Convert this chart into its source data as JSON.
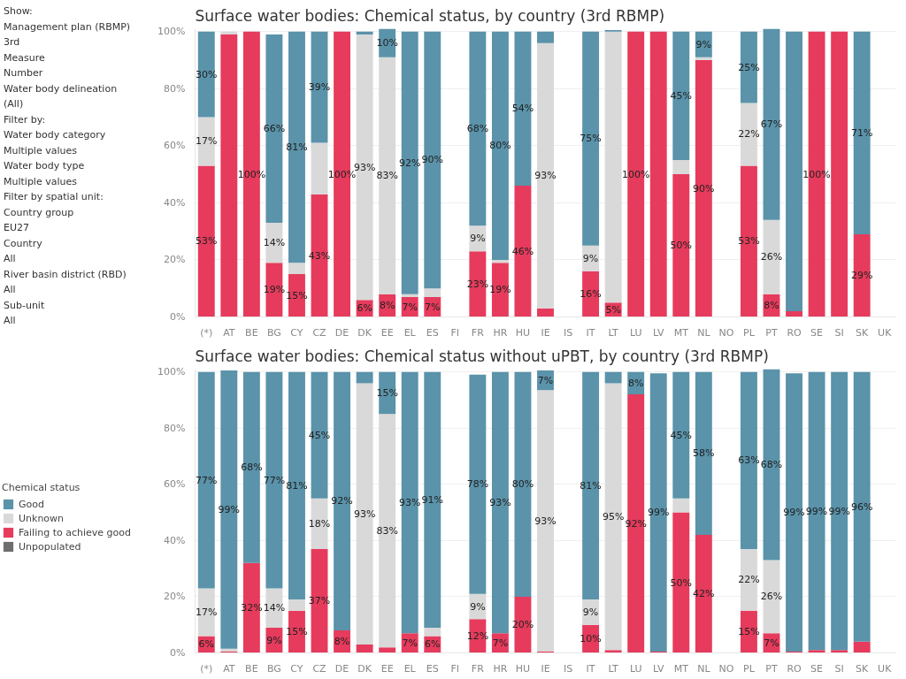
{
  "chart_data": [
    {
      "type": "bar",
      "stacked": true,
      "title": "Surface water bodies: Chemical status, by country (3rd RBMP)",
      "annotations": [
        "Show:",
        "Management plan (RBMP)",
        "3rd",
        "Measure",
        "Number",
        "Water body delineation",
        "(All)",
        "Filter by:",
        "Water body category",
        "Multiple values",
        "Water body type",
        "Multiple values",
        "Filter by spatial unit:",
        "Country group",
        "EU27",
        "Country",
        "All",
        "River basin district (RBD)",
        "All",
        "Sub-unit",
        "All"
      ],
      "categories": [
        "(*)",
        "AT",
        "BE",
        "BG",
        "CY",
        "CZ",
        "DE",
        "DK",
        "EE",
        "EL",
        "ES",
        "FI",
        "FR",
        "HR",
        "HU",
        "IE",
        "IS",
        "IT",
        "LT",
        "LU",
        "LV",
        "MT",
        "NL",
        "NO",
        "PL",
        "PT",
        "RO",
        "SE",
        "SI",
        "SK",
        "UK"
      ],
      "grid": "y",
      "ylim": [
        0,
        101
      ],
      "yticks": [
        {
          "value": 0,
          "label": "0%"
        },
        {
          "value": 20,
          "label": "20%"
        },
        {
          "value": 40,
          "label": "40%"
        },
        {
          "value": 60,
          "label": "60%"
        },
        {
          "value": 80,
          "label": "80%"
        },
        {
          "value": 100,
          "label": "100%"
        }
      ],
      "series": [
        {
          "color": "#e63b5c",
          "values": [
            53,
            99,
            100,
            19,
            15,
            43,
            100,
            6,
            8,
            7,
            7,
            null,
            23,
            19,
            46,
            3,
            null,
            16,
            5,
            100,
            100,
            50,
            90,
            null,
            53,
            8,
            2,
            100,
            100,
            29,
            null
          ],
          "value_labels": [
            "53%",
            null,
            "100%",
            "19%",
            "15%",
            "43%",
            "100%",
            "6%",
            "8%",
            "7%",
            "7%",
            null,
            "23%",
            "19%",
            "46%",
            null,
            null,
            "16%",
            "5%",
            "100%",
            null,
            "50%",
            "90%",
            null,
            "53%",
            "8%",
            null,
            "100%",
            null,
            "29%",
            null
          ]
        },
        {
          "color": "#d9d9d9",
          "values": [
            17,
            1,
            null,
            14,
            4,
            18,
            null,
            93,
            83,
            1,
            3,
            null,
            9,
            1,
            null,
            93,
            null,
            9,
            95,
            null,
            null,
            5,
            1,
            null,
            22,
            26,
            null,
            null,
            null,
            null,
            null
          ],
          "value_labels": [
            "17%",
            null,
            null,
            "14%",
            null,
            null,
            null,
            "93%",
            "83%",
            null,
            null,
            null,
            "9%",
            null,
            null,
            "93%",
            null,
            "9%",
            null,
            null,
            null,
            null,
            null,
            null,
            "22%",
            "26%",
            null,
            null,
            null,
            null,
            null
          ]
        },
        {
          "color": "#5a93aa",
          "values": [
            30,
            null,
            null,
            66,
            81,
            39,
            null,
            1,
            10,
            92,
            90,
            null,
            68,
            80,
            54,
            4,
            null,
            75,
            0.5,
            null,
            null,
            45,
            9,
            null,
            25,
            67,
            98,
            null,
            null,
            71,
            null
          ],
          "value_labels": [
            "30%",
            null,
            null,
            "66%",
            "81%",
            "39%",
            null,
            null,
            "10%",
            "92%",
            "90%",
            null,
            "68%",
            "80%",
            "54%",
            null,
            null,
            "75%",
            null,
            null,
            null,
            "45%",
            "9%",
            null,
            "25%",
            "67%",
            null,
            null,
            null,
            "71%",
            null
          ]
        }
      ]
    },
    {
      "type": "bar",
      "stacked": true,
      "title": "Surface water bodies: Chemical status without uPBT, by country (3rd RBMP)",
      "categories": [
        "(*)",
        "AT",
        "BE",
        "BG",
        "CY",
        "CZ",
        "DE",
        "DK",
        "EE",
        "EL",
        "ES",
        "FI",
        "FR",
        "HR",
        "HU",
        "IE",
        "IS",
        "IT",
        "LT",
        "LU",
        "LV",
        "MT",
        "NL",
        "NO",
        "PL",
        "PT",
        "RO",
        "SE",
        "SI",
        "SK",
        "UK"
      ],
      "grid": "y",
      "legend": "left",
      "legend_title": "Chemical status",
      "ylim": [
        0,
        101
      ],
      "yticks": [
        {
          "value": 0,
          "label": "0%"
        },
        {
          "value": 20,
          "label": "20%"
        },
        {
          "value": 40,
          "label": "40%"
        },
        {
          "value": 60,
          "label": "60%"
        },
        {
          "value": 80,
          "label": "80%"
        },
        {
          "value": 100,
          "label": "100%"
        }
      ],
      "series": [
        {
          "name": "Unpopulated",
          "color": "#6e6e6e",
          "values": [
            null,
            null,
            null,
            null,
            null,
            null,
            null,
            null,
            null,
            null,
            null,
            null,
            null,
            null,
            null,
            null,
            null,
            null,
            null,
            null,
            null,
            null,
            null,
            null,
            null,
            null,
            null,
            null,
            null,
            null,
            null
          ]
        },
        {
          "name": "Failing to achieve good",
          "color": "#e63b5c",
          "values": [
            6,
            0.5,
            32,
            9,
            15,
            37,
            8,
            3,
            2,
            7,
            6,
            null,
            12,
            7,
            20,
            0.5,
            null,
            10,
            1,
            92,
            0.5,
            50,
            42,
            null,
            15,
            7,
            0.5,
            1,
            1,
            4,
            null
          ],
          "value_labels": [
            "6%",
            null,
            "32%",
            "9%",
            "15%",
            "37%",
            "8%",
            null,
            null,
            "7%",
            "6%",
            null,
            "12%",
            "7%",
            "20%",
            null,
            null,
            "10%",
            null,
            "92%",
            null,
            "50%",
            "42%",
            null,
            "15%",
            "7%",
            null,
            null,
            null,
            null,
            null
          ]
        },
        {
          "name": "Unknown",
          "color": "#d9d9d9",
          "values": [
            17,
            1,
            null,
            14,
            4,
            18,
            null,
            93,
            83,
            null,
            3,
            null,
            9,
            null,
            null,
            93,
            null,
            9,
            95,
            null,
            null,
            5,
            null,
            null,
            22,
            26,
            null,
            null,
            null,
            null,
            null
          ],
          "value_labels": [
            "17%",
            null,
            null,
            "14%",
            null,
            "18%",
            null,
            "93%",
            "83%",
            null,
            null,
            null,
            "9%",
            null,
            null,
            "93%",
            null,
            "9%",
            "95%",
            null,
            null,
            null,
            null,
            null,
            "22%",
            "26%",
            null,
            null,
            null,
            null,
            null
          ]
        },
        {
          "name": "Good",
          "color": "#5a93aa",
          "values": [
            77,
            99,
            68,
            77,
            81,
            45,
            92,
            4,
            15,
            93,
            91,
            null,
            78,
            93,
            80,
            7,
            null,
            81,
            4,
            8,
            99,
            45,
            58,
            null,
            63,
            68,
            99,
            99,
            99,
            96,
            null
          ],
          "value_labels": [
            "77%",
            "99%",
            "68%",
            "77%",
            "81%",
            "45%",
            "92%",
            null,
            "15%",
            "93%",
            "91%",
            null,
            "78%",
            "93%",
            "80%",
            "7%",
            null,
            "81%",
            null,
            "8%",
            "99%",
            "45%",
            "58%",
            null,
            "63%",
            "68%",
            "99%",
            "99%",
            "99%",
            "96%",
            null
          ]
        }
      ]
    }
  ]
}
